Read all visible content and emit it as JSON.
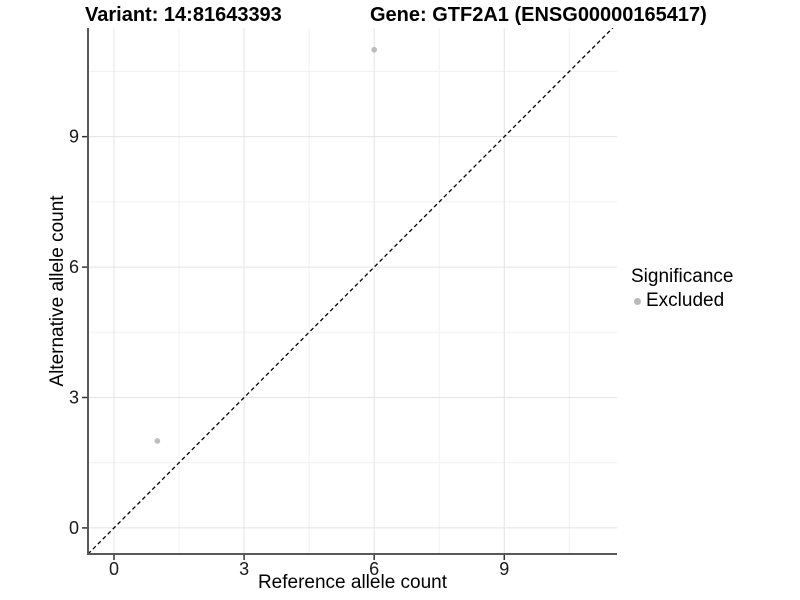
{
  "chart_data": {
    "type": "scatter",
    "titles": {
      "left": "Variant: 14:81643393",
      "right": "Gene: GTF2A1 (ENSG00000165417)"
    },
    "xlabel": "Reference allele count",
    "ylabel": "Alternative allele count",
    "x_ticks": [
      0,
      3,
      6,
      9
    ],
    "y_ticks": [
      0,
      3,
      6,
      9
    ],
    "x_minor_ticks": [
      1.5,
      4.5,
      7.5,
      10.5
    ],
    "y_minor_ticks": [
      1.5,
      4.5,
      7.5,
      10.5
    ],
    "xlim": [
      -0.6,
      11.6
    ],
    "ylim": [
      -0.6,
      11.5
    ],
    "grid": "on",
    "reference_line": {
      "type": "identity",
      "style": "dashed",
      "color": "#000000"
    },
    "series": [
      {
        "name": "Excluded",
        "color": "#bcbcbc",
        "points": [
          [
            1,
            2
          ],
          [
            6,
            11
          ]
        ]
      }
    ],
    "legend": {
      "title": "Significance",
      "position": "right",
      "items": [
        {
          "label": "Excluded",
          "color": "#b9b9b9"
        }
      ]
    },
    "colors": {
      "grid_major": "#e4e4e4",
      "grid_minor": "#f1f1f1",
      "axis_line": "#595959",
      "tick_mark": "#333333",
      "tick_text": "#1a1a1a"
    }
  }
}
